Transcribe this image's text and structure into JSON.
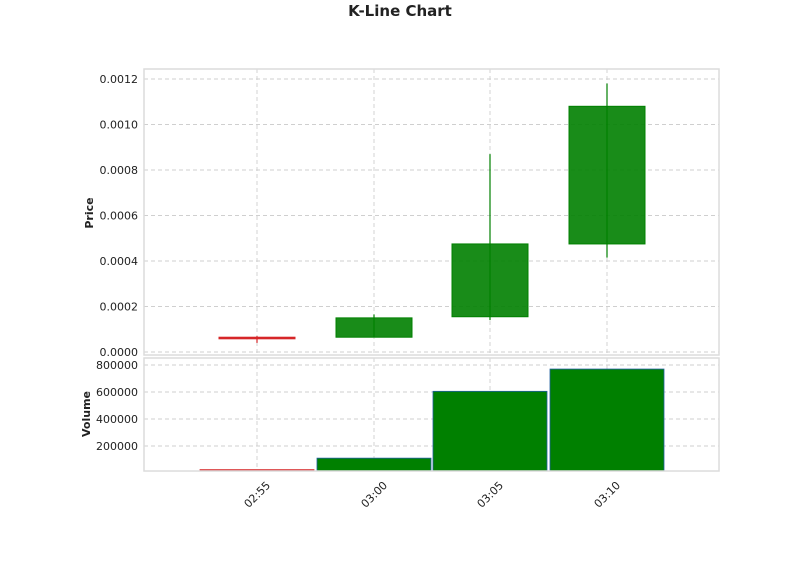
{
  "chart_data": [
    {
      "type": "candlestick",
      "title": "K-Line Chart",
      "ylabel": "Price",
      "categories": [
        "02:55",
        "03:00",
        "03:05",
        "03:10"
      ],
      "open": [
        6.5e-05,
        6.5e-05,
        0.000155,
        0.000475
      ],
      "high": [
        7e-05,
        0.000165,
        0.00087,
        0.00118
      ],
      "low": [
        4e-05,
        6.5e-05,
        0.00014,
        0.000415
      ],
      "close": [
        6.5e-05,
        0.00015,
        0.000475,
        0.00108
      ],
      "colors": [
        "#d62728",
        "#008000",
        "#008000",
        "#008000"
      ],
      "ylim": [
        0,
        0.00124
      ],
      "yticks": [
        "0.0000",
        "0.0002",
        "0.0004",
        "0.0006",
        "0.0008",
        "0.0010",
        "0.0012"
      ],
      "ytick_values": [
        0,
        0.0002,
        0.0004,
        0.0006,
        0.0008,
        0.001,
        0.0012
      ],
      "grid": true
    },
    {
      "type": "bar",
      "ylabel": "Volume",
      "categories": [
        "02:55",
        "03:00",
        "03:05",
        "03:10"
      ],
      "values": [
        25000,
        110000,
        605000,
        770000
      ],
      "colors": [
        "#d62728",
        "#008000",
        "#008000",
        "#008000"
      ],
      "ylim": [
        0,
        860000
      ],
      "yticks": [
        "200000",
        "400000",
        "600000",
        "800000"
      ],
      "ytick_values": [
        200000,
        400000,
        600000,
        800000
      ],
      "xticks": [
        "02:55",
        "03:00",
        "03:05",
        "03:10"
      ],
      "grid": true
    }
  ]
}
